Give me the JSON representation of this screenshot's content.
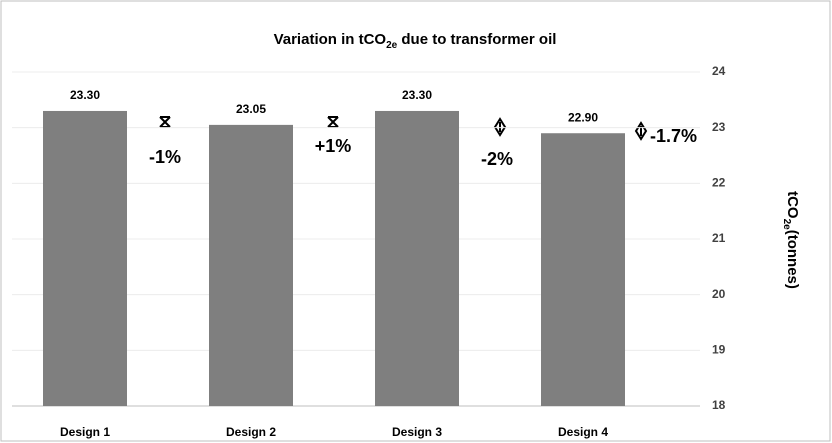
{
  "chart_data": {
    "type": "bar",
    "title": [
      "Variation in tCO",
      "2e",
      " due to transformer oil"
    ],
    "y_label": [
      "tCO",
      "2e",
      "(tonnes)"
    ],
    "categories": [
      "Design 1",
      "Design 2",
      "Design 3",
      "Design 4"
    ],
    "values": [
      23.3,
      23.05,
      23.3,
      22.9
    ],
    "value_labels": [
      "23.30",
      "23.05",
      "23.30",
      "22.90"
    ],
    "color": "#7f7f7f",
    "ylim": [
      18,
      24
    ],
    "yticks": [
      18,
      19,
      20,
      21,
      22,
      23,
      24
    ],
    "grid": true,
    "annotations": [
      "-1%",
      "+1%",
      "-2%",
      "-1.7%"
    ]
  }
}
